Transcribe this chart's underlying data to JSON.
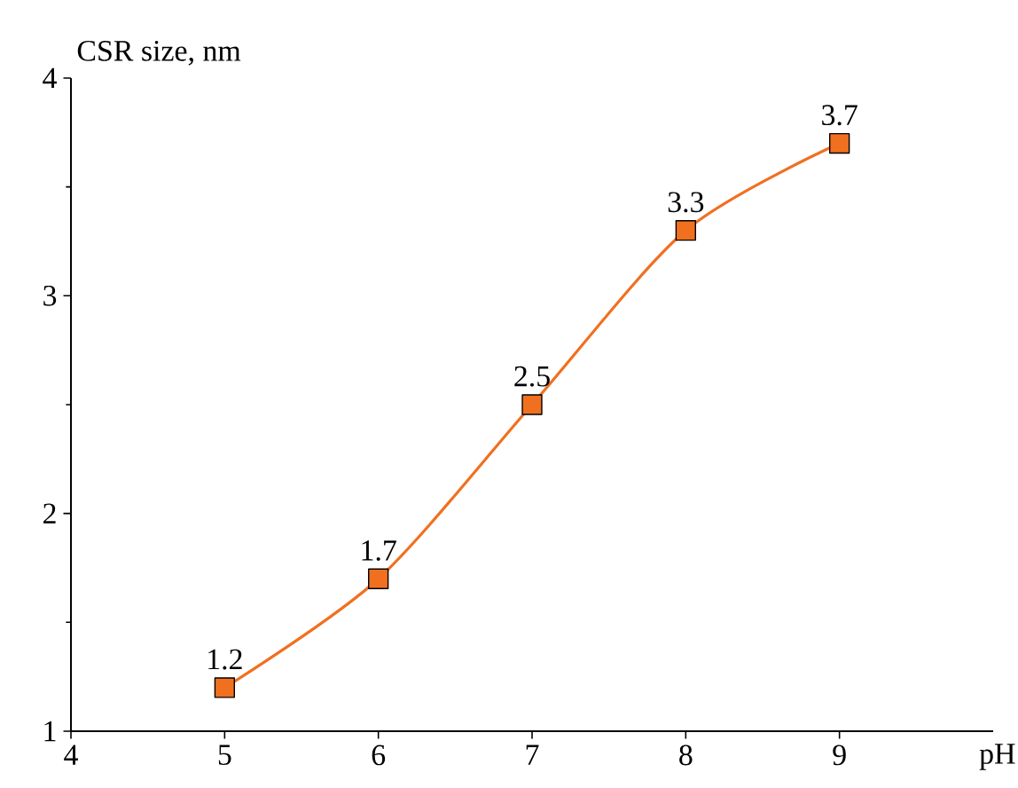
{
  "chart_data": {
    "type": "line",
    "xlabel": "pH",
    "ylabel": "CSR size, nm",
    "x": [
      5,
      6,
      7,
      8,
      9
    ],
    "series": [
      {
        "color": "#f07020",
        "values": [
          1.2,
          1.7,
          2.5,
          3.3,
          3.7
        ]
      }
    ],
    "xlim": [
      4,
      10
    ],
    "ylim": [
      1,
      4
    ],
    "xticks": [
      4,
      5,
      6,
      7,
      8,
      9
    ],
    "yticks": [
      1,
      2,
      3,
      4
    ],
    "data_labels": true,
    "marker": "square",
    "line_style": "solid"
  }
}
